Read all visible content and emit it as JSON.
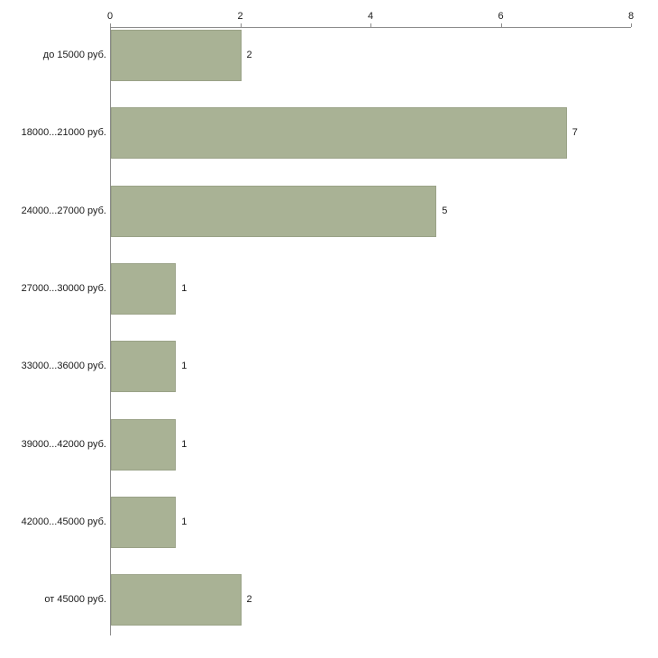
{
  "chart_data": {
    "type": "bar",
    "orientation": "horizontal",
    "title": "",
    "xlabel": "",
    "ylabel": "",
    "categories": [
      "до 15000 руб.",
      "18000...21000 руб.",
      "24000...27000 руб.",
      "27000...30000 руб.",
      "33000...36000 руб.",
      "39000...42000 руб.",
      "42000...45000 руб.",
      "от 45000 руб."
    ],
    "values": [
      2,
      7,
      5,
      1,
      1,
      1,
      1,
      2
    ],
    "value_labels": [
      "2",
      "7",
      "5",
      "1",
      "1",
      "1",
      "1",
      "2"
    ],
    "x_ticks": [
      "0",
      "2",
      "4",
      "6",
      "8"
    ],
    "x_tick_values": [
      0,
      2,
      4,
      6,
      8
    ],
    "xlim": [
      0,
      8
    ],
    "grid": false,
    "legend": false,
    "axis_position": "top-left",
    "colors": {
      "bar_fill": "#a9b295",
      "bar_border": "#9aa287",
      "axis": "#8c8c8c",
      "text": "#1a1a1a",
      "background": "#ffffff"
    }
  }
}
